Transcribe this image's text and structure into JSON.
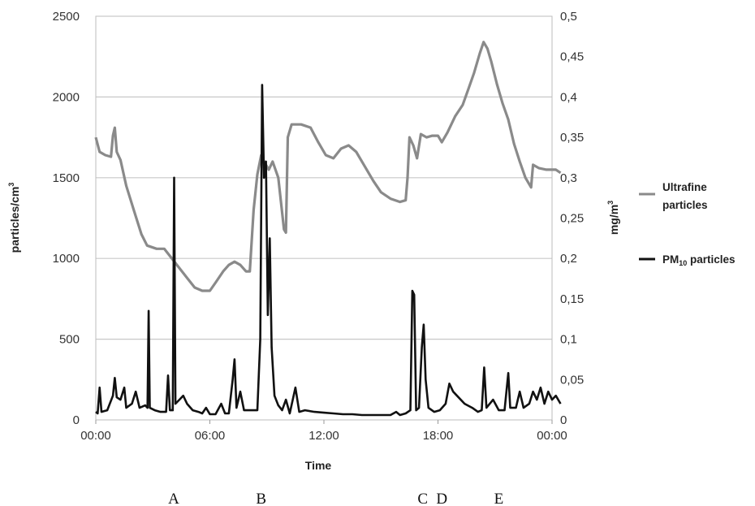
{
  "chart_data": {
    "type": "line",
    "xlabel": "Time",
    "ylabel_left": "particles/cm",
    "ylabel_left_sup": "3",
    "ylabel_right": "mg/m",
    "ylabel_right_sup": "3",
    "x_ticks": [
      "00:00",
      "06:00",
      "12:00",
      "18:00",
      "00:00"
    ],
    "x_tick_hours": [
      0,
      6,
      12,
      18,
      24
    ],
    "xlim_hours": [
      0,
      24
    ],
    "y_left_ticks": [
      "0",
      "500",
      "1000",
      "1500",
      "2000",
      "2500"
    ],
    "y_left_tick_values": [
      0,
      500,
      1000,
      1500,
      2000,
      2500
    ],
    "ylim_left": [
      0,
      2500
    ],
    "y_right_ticks": [
      "0",
      "0,05",
      "0,1",
      "0,15",
      "0,2",
      "0,25",
      "0,3",
      "0,35",
      "0,4",
      "0,45",
      "0,5"
    ],
    "y_right_tick_values": [
      0,
      0.05,
      0.1,
      0.15,
      0.2,
      0.25,
      0.3,
      0.35,
      0.4,
      0.45,
      0.5
    ],
    "ylim_right": [
      0,
      0.5
    ],
    "grid": "horizontal",
    "legend_position": "right",
    "event_markers": [
      {
        "label": "A",
        "time_hours": 4.1
      },
      {
        "label": "B",
        "time_hours": 8.7
      },
      {
        "label": "C",
        "time_hours": 17.2
      },
      {
        "label": "D",
        "time_hours": 18.2
      },
      {
        "label": "E",
        "time_hours": 21.2
      }
    ],
    "series": [
      {
        "name": "Ultrafine particles",
        "color": "#8a8a8a",
        "axis": "left",
        "points": [
          [
            0.0,
            1750
          ],
          [
            0.2,
            1660
          ],
          [
            0.5,
            1640
          ],
          [
            0.8,
            1630
          ],
          [
            0.9,
            1760
          ],
          [
            1.0,
            1810
          ],
          [
            1.1,
            1660
          ],
          [
            1.3,
            1610
          ],
          [
            1.6,
            1450
          ],
          [
            2.0,
            1300
          ],
          [
            2.4,
            1150
          ],
          [
            2.7,
            1080
          ],
          [
            3.2,
            1060
          ],
          [
            3.6,
            1060
          ],
          [
            4.0,
            1000
          ],
          [
            4.4,
            940
          ],
          [
            4.8,
            880
          ],
          [
            5.2,
            820
          ],
          [
            5.6,
            800
          ],
          [
            6.0,
            800
          ],
          [
            6.3,
            850
          ],
          [
            6.7,
            920
          ],
          [
            7.0,
            960
          ],
          [
            7.3,
            980
          ],
          [
            7.6,
            960
          ],
          [
            7.9,
            920
          ],
          [
            8.1,
            920
          ],
          [
            8.3,
            1300
          ],
          [
            8.5,
            1520
          ],
          [
            8.7,
            1640
          ],
          [
            8.9,
            1590
          ],
          [
            9.1,
            1550
          ],
          [
            9.3,
            1600
          ],
          [
            9.6,
            1500
          ],
          [
            9.9,
            1180
          ],
          [
            10.0,
            1160
          ],
          [
            10.1,
            1750
          ],
          [
            10.3,
            1830
          ],
          [
            10.8,
            1830
          ],
          [
            11.3,
            1810
          ],
          [
            11.7,
            1720
          ],
          [
            12.1,
            1640
          ],
          [
            12.5,
            1620
          ],
          [
            12.9,
            1680
          ],
          [
            13.3,
            1700
          ],
          [
            13.7,
            1660
          ],
          [
            14.1,
            1580
          ],
          [
            14.6,
            1480
          ],
          [
            15.0,
            1410
          ],
          [
            15.5,
            1370
          ],
          [
            16.0,
            1350
          ],
          [
            16.3,
            1360
          ],
          [
            16.4,
            1500
          ],
          [
            16.5,
            1750
          ],
          [
            16.7,
            1700
          ],
          [
            16.9,
            1620
          ],
          [
            17.1,
            1770
          ],
          [
            17.4,
            1750
          ],
          [
            17.7,
            1760
          ],
          [
            18.0,
            1760
          ],
          [
            18.2,
            1720
          ],
          [
            18.5,
            1780
          ],
          [
            18.9,
            1880
          ],
          [
            19.3,
            1950
          ],
          [
            19.6,
            2050
          ],
          [
            19.9,
            2150
          ],
          [
            20.2,
            2270
          ],
          [
            20.4,
            2340
          ],
          [
            20.6,
            2300
          ],
          [
            20.8,
            2220
          ],
          [
            21.1,
            2080
          ],
          [
            21.4,
            1960
          ],
          [
            21.7,
            1860
          ],
          [
            22.0,
            1710
          ],
          [
            22.3,
            1600
          ],
          [
            22.6,
            1500
          ],
          [
            22.9,
            1440
          ],
          [
            23.0,
            1580
          ],
          [
            23.3,
            1560
          ],
          [
            23.7,
            1550
          ],
          [
            24.0,
            1550
          ],
          [
            24.2,
            1550
          ],
          [
            24.45,
            1530
          ]
        ]
      },
      {
        "name": "PM10 particles",
        "display_name": "PM",
        "display_sub": "10",
        "display_suffix": " particles",
        "color": "#111111",
        "axis": "right",
        "points": [
          [
            0.0,
            0.01
          ],
          [
            0.1,
            0.008
          ],
          [
            0.2,
            0.04
          ],
          [
            0.3,
            0.01
          ],
          [
            0.6,
            0.012
          ],
          [
            0.9,
            0.03
          ],
          [
            1.0,
            0.052
          ],
          [
            1.1,
            0.028
          ],
          [
            1.3,
            0.025
          ],
          [
            1.5,
            0.04
          ],
          [
            1.6,
            0.015
          ],
          [
            1.9,
            0.02
          ],
          [
            2.1,
            0.035
          ],
          [
            2.3,
            0.015
          ],
          [
            2.6,
            0.018
          ],
          [
            2.72,
            0.015
          ],
          [
            2.78,
            0.135
          ],
          [
            2.84,
            0.015
          ],
          [
            3.1,
            0.012
          ],
          [
            3.4,
            0.01
          ],
          [
            3.7,
            0.01
          ],
          [
            3.8,
            0.055
          ],
          [
            3.9,
            0.012
          ],
          [
            4.05,
            0.012
          ],
          [
            4.12,
            0.3
          ],
          [
            4.19,
            0.02
          ],
          [
            4.4,
            0.025
          ],
          [
            4.6,
            0.03
          ],
          [
            4.8,
            0.02
          ],
          [
            5.1,
            0.012
          ],
          [
            5.4,
            0.01
          ],
          [
            5.6,
            0.008
          ],
          [
            5.8,
            0.015
          ],
          [
            6.0,
            0.007
          ],
          [
            6.3,
            0.007
          ],
          [
            6.6,
            0.02
          ],
          [
            6.8,
            0.008
          ],
          [
            7.0,
            0.008
          ],
          [
            7.2,
            0.05
          ],
          [
            7.3,
            0.075
          ],
          [
            7.4,
            0.015
          ],
          [
            7.6,
            0.035
          ],
          [
            7.8,
            0.012
          ],
          [
            8.2,
            0.012
          ],
          [
            8.5,
            0.012
          ],
          [
            8.65,
            0.1
          ],
          [
            8.75,
            0.415
          ],
          [
            8.85,
            0.3
          ],
          [
            8.95,
            0.32
          ],
          [
            9.05,
            0.13
          ],
          [
            9.15,
            0.225
          ],
          [
            9.25,
            0.09
          ],
          [
            9.4,
            0.03
          ],
          [
            9.6,
            0.018
          ],
          [
            9.8,
            0.012
          ],
          [
            10.0,
            0.025
          ],
          [
            10.2,
            0.008
          ],
          [
            10.5,
            0.04
          ],
          [
            10.7,
            0.01
          ],
          [
            11.0,
            0.012
          ],
          [
            11.5,
            0.01
          ],
          [
            12.0,
            0.009
          ],
          [
            12.5,
            0.008
          ],
          [
            13.0,
            0.007
          ],
          [
            13.5,
            0.007
          ],
          [
            14.0,
            0.006
          ],
          [
            14.5,
            0.006
          ],
          [
            15.0,
            0.006
          ],
          [
            15.5,
            0.006
          ],
          [
            15.8,
            0.01
          ],
          [
            16.0,
            0.006
          ],
          [
            16.3,
            0.008
          ],
          [
            16.55,
            0.012
          ],
          [
            16.65,
            0.16
          ],
          [
            16.75,
            0.155
          ],
          [
            16.85,
            0.012
          ],
          [
            17.0,
            0.015
          ],
          [
            17.15,
            0.09
          ],
          [
            17.25,
            0.118
          ],
          [
            17.35,
            0.05
          ],
          [
            17.5,
            0.015
          ],
          [
            17.8,
            0.01
          ],
          [
            18.1,
            0.012
          ],
          [
            18.4,
            0.02
          ],
          [
            18.6,
            0.045
          ],
          [
            18.8,
            0.035
          ],
          [
            19.0,
            0.03
          ],
          [
            19.4,
            0.02
          ],
          [
            19.8,
            0.015
          ],
          [
            20.1,
            0.01
          ],
          [
            20.3,
            0.012
          ],
          [
            20.43,
            0.065
          ],
          [
            20.55,
            0.015
          ],
          [
            20.9,
            0.025
          ],
          [
            21.2,
            0.012
          ],
          [
            21.5,
            0.012
          ],
          [
            21.7,
            0.058
          ],
          [
            21.8,
            0.015
          ],
          [
            22.1,
            0.015
          ],
          [
            22.3,
            0.035
          ],
          [
            22.5,
            0.015
          ],
          [
            22.8,
            0.02
          ],
          [
            23.0,
            0.035
          ],
          [
            23.2,
            0.025
          ],
          [
            23.4,
            0.04
          ],
          [
            23.6,
            0.02
          ],
          [
            23.8,
            0.035
          ],
          [
            24.0,
            0.025
          ],
          [
            24.2,
            0.03
          ],
          [
            24.45,
            0.02
          ]
        ]
      }
    ]
  }
}
